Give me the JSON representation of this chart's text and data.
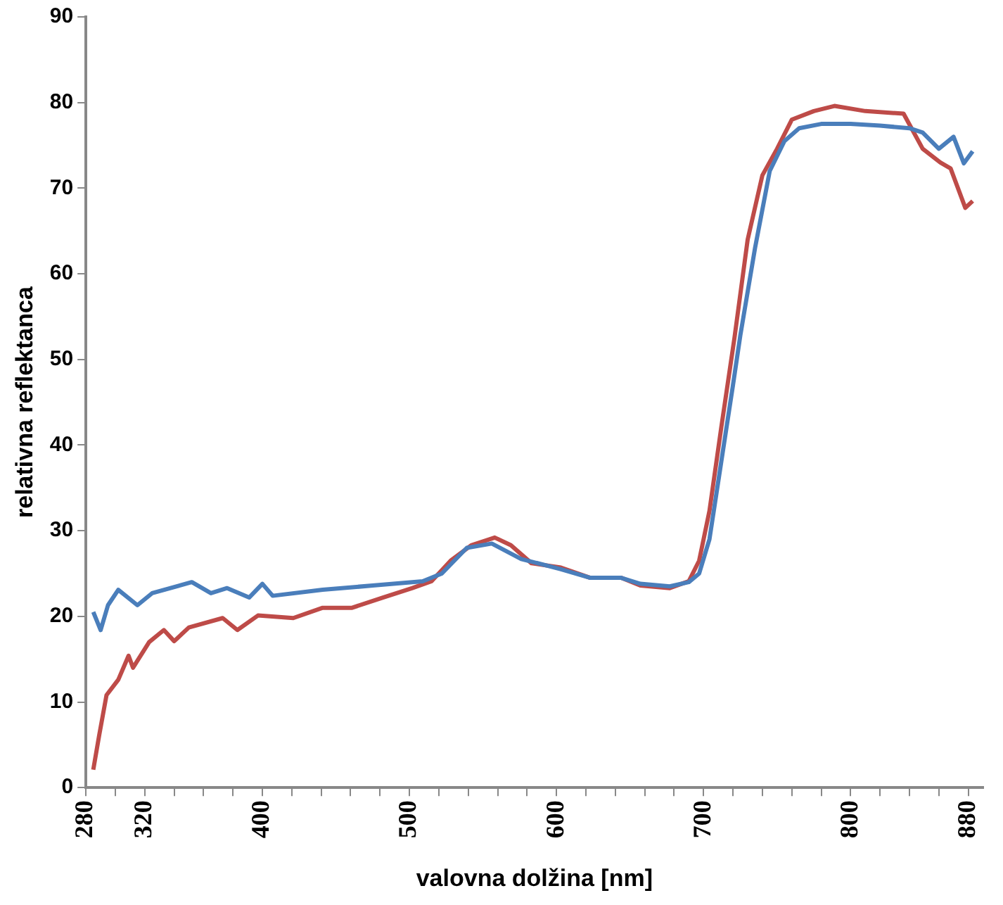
{
  "chart_data": {
    "type": "line",
    "xlabel": "valovna dolžina [nm]",
    "ylabel": "relativna reflektanca",
    "xlim": [
      280,
      890
    ],
    "xticks": [
      280,
      {
        "value": 300,
        "label": null
      },
      320,
      {
        "value": 340,
        "label": null
      },
      {
        "value": 360,
        "label": null
      },
      {
        "value": 380,
        "label": null
      },
      400,
      {
        "value": 420,
        "label": null
      },
      {
        "value": 440,
        "label": null
      },
      {
        "value": 460,
        "label": null
      },
      {
        "value": 480,
        "label": null
      },
      500,
      {
        "value": 520,
        "label": null
      },
      {
        "value": 540,
        "label": null
      },
      {
        "value": 560,
        "label": null
      },
      {
        "value": 580,
        "label": null
      },
      600,
      {
        "value": 620,
        "label": null
      },
      {
        "value": 640,
        "label": null
      },
      {
        "value": 660,
        "label": null
      },
      {
        "value": 680,
        "label": null
      },
      700,
      {
        "value": 720,
        "label": null
      },
      {
        "value": 740,
        "label": null
      },
      {
        "value": 760,
        "label": null
      },
      {
        "value": 780,
        "label": null
      },
      800,
      {
        "value": 820,
        "label": null
      },
      {
        "value": 840,
        "label": null
      },
      {
        "value": 860,
        "label": null
      },
      880
    ],
    "ylim": [
      0,
      90
    ],
    "yticks": [
      0,
      10,
      20,
      30,
      40,
      50,
      60,
      70,
      80,
      90
    ],
    "grid": false,
    "legend": false,
    "marker": "none",
    "line_style": "solid",
    "series": [
      {
        "color": "#4a7ebb",
        "x": [
          285,
          290,
          295,
          302,
          315,
          325,
          352,
          365,
          376,
          391,
          400,
          407,
          441,
          475,
          509,
          522,
          539,
          556,
          576,
          603,
          623,
          644,
          657,
          677,
          690,
          697,
          704,
          712,
          720,
          725,
          735,
          745,
          755,
          765,
          780,
          800,
          820,
          840,
          849,
          860,
          870,
          877,
          883
        ],
        "values": [
          20.5,
          18.4,
          21.3,
          23.1,
          21.3,
          22.7,
          24,
          22.7,
          23.3,
          22.2,
          23.8,
          22.4,
          23.1,
          23.6,
          24.1,
          25,
          28,
          28.5,
          26.7,
          25.5,
          24.5,
          24.5,
          23.8,
          23.5,
          24,
          25,
          29,
          38,
          47,
          52.8,
          63,
          72,
          75.5,
          77,
          77.5,
          77.5,
          77.3,
          77,
          76.5,
          74.6,
          76,
          72.9,
          74.3
        ]
      },
      {
        "color": "#be4b48",
        "x": [
          285,
          289,
          294,
          302,
          309,
          312,
          323,
          333,
          340,
          350,
          373,
          383,
          397,
          421,
          441,
          461,
          482,
          502,
          515,
          528,
          542,
          558,
          569,
          583,
          603,
          623,
          644,
          657,
          677,
          690,
          697,
          704,
          712,
          721,
          730,
          740,
          750,
          760,
          775,
          789,
          810,
          836,
          849,
          861,
          868,
          878,
          883
        ],
        "values": [
          2.1,
          6.1,
          10.8,
          12.6,
          15.4,
          14,
          17,
          18.4,
          17.1,
          18.7,
          19.8,
          18.4,
          20.1,
          19.8,
          21,
          21,
          22.2,
          23.3,
          24.1,
          26.5,
          28.3,
          29.2,
          28.3,
          26.2,
          25.7,
          24.5,
          24.5,
          23.6,
          23.3,
          24.1,
          26.5,
          32.3,
          42,
          52.5,
          64,
          71.5,
          74.6,
          78,
          79,
          79.6,
          79,
          78.7,
          74.6,
          73,
          72.3,
          67.7,
          68.5
        ]
      }
    ]
  }
}
